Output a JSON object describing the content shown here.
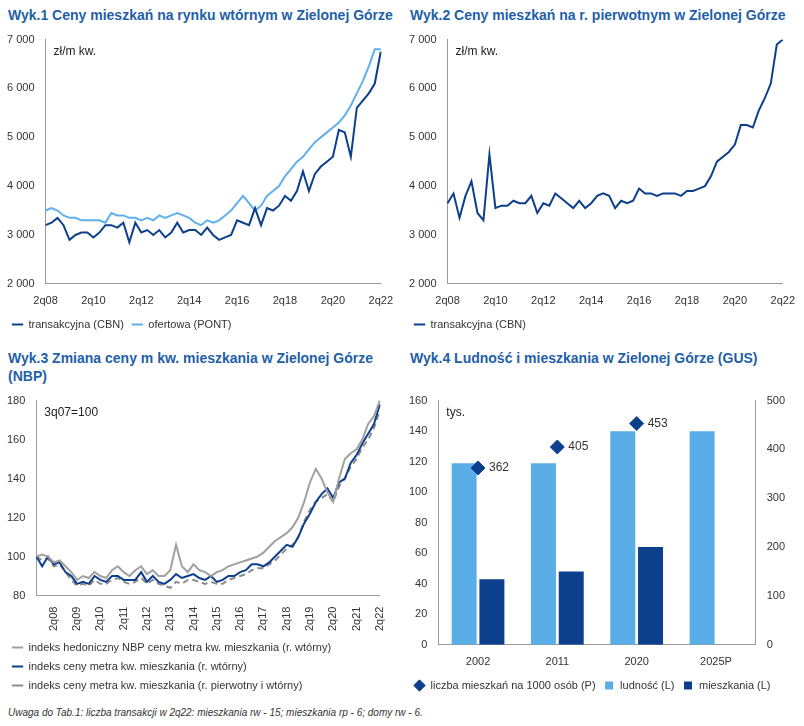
{
  "chart_data": [
    {
      "type": "line",
      "title": "Wyk.1 Ceny mieszkań na rynku wtórnym w Zielonej Górze",
      "annotation": "zł/m kw.",
      "categories": [
        "2q08",
        null,
        null,
        null,
        null,
        null,
        null,
        null,
        "2q10",
        null,
        null,
        null,
        null,
        null,
        null,
        null,
        "2q12",
        null,
        null,
        null,
        null,
        null,
        null,
        null,
        "2q14",
        null,
        null,
        null,
        null,
        null,
        null,
        null,
        "2q16",
        null,
        null,
        null,
        null,
        null,
        null,
        null,
        "2q18",
        null,
        null,
        null,
        null,
        null,
        null,
        null,
        "2q20",
        null,
        null,
        null,
        null,
        null,
        null,
        null,
        "2q22"
      ],
      "series": [
        {
          "name": "transakcyjna (CBN)",
          "color": "#0c3f8c",
          "line_style": "solid",
          "values": [
            3200,
            3250,
            3350,
            3200,
            2900,
            3000,
            3050,
            3050,
            2950,
            3050,
            3200,
            3200,
            3150,
            3250,
            2850,
            3250,
            3050,
            3100,
            3000,
            3100,
            2950,
            3050,
            3250,
            3050,
            3100,
            3100,
            3000,
            3150,
            3000,
            2900,
            2950,
            3000,
            3300,
            3250,
            3200,
            3550,
            3200,
            3550,
            3500,
            3600,
            3800,
            3700,
            3900,
            4300,
            3900,
            4250,
            4400,
            4500,
            4600,
            5150,
            5100,
            4600,
            5600,
            5750,
            5900,
            6100,
            6750
          ]
        },
        {
          "name": "ofertowa (PONT)",
          "color": "#5fb0ea",
          "line_style": "solid",
          "values": [
            3500,
            3550,
            3500,
            3400,
            3350,
            3350,
            3300,
            3300,
            3300,
            3300,
            3250,
            3450,
            3400,
            3400,
            3350,
            3350,
            3300,
            3350,
            3300,
            3400,
            3350,
            3400,
            3450,
            3400,
            3350,
            3250,
            3200,
            3300,
            3250,
            3300,
            3400,
            3500,
            3650,
            3800,
            3650,
            3500,
            3600,
            3800,
            3900,
            4000,
            4200,
            4350,
            4500,
            4600,
            4750,
            4900,
            5000,
            5100,
            5200,
            5300,
            5450,
            5650,
            5900,
            6150,
            6450,
            6800,
            6800
          ]
        }
      ],
      "ylim": [
        2000,
        7000
      ],
      "yticks": [
        {
          "value": 2000,
          "label": "2 000"
        },
        {
          "value": 3000,
          "label": "3 000"
        },
        {
          "value": 4000,
          "label": "4 000"
        },
        {
          "value": 5000,
          "label": "5 000"
        },
        {
          "value": 6000,
          "label": "6 000"
        },
        {
          "value": 7000,
          "label": "7 000"
        }
      ],
      "grid": false,
      "legend": "bottom"
    },
    {
      "type": "line",
      "title": "Wyk.2 Ceny mieszkań na r. pierwotnym w Zielonej Górze",
      "annotation": "zł/m kw.",
      "categories": [
        "2q08",
        null,
        null,
        null,
        null,
        null,
        null,
        null,
        "2q10",
        null,
        null,
        null,
        null,
        null,
        null,
        null,
        "2q12",
        null,
        null,
        null,
        null,
        null,
        null,
        null,
        "2q14",
        null,
        null,
        null,
        null,
        null,
        null,
        null,
        "2q16",
        null,
        null,
        null,
        null,
        null,
        null,
        null,
        "2q18",
        null,
        null,
        null,
        null,
        null,
        null,
        null,
        "2q20",
        null,
        null,
        null,
        null,
        null,
        null,
        null,
        "2q22"
      ],
      "series": [
        {
          "name": "transakcyjna (CBN)",
          "color": "#0c3f8c",
          "line_style": "solid",
          "values": [
            3650,
            3850,
            3350,
            3800,
            4100,
            3450,
            3300,
            4650,
            3550,
            3600,
            3600,
            3700,
            3650,
            3650,
            3800,
            3450,
            3650,
            3600,
            3850,
            3750,
            3650,
            3550,
            3700,
            3550,
            3650,
            3800,
            3850,
            3800,
            3550,
            3700,
            3650,
            3700,
            3950,
            3850,
            3850,
            3800,
            3850,
            3850,
            3850,
            3800,
            3900,
            3900,
            3950,
            4000,
            4200,
            4500,
            4600,
            4700,
            4850,
            5250,
            5250,
            5200,
            5550,
            5800,
            6100,
            6900,
            7000
          ]
        }
      ],
      "ylim": [
        2000,
        7000
      ],
      "yticks": [
        {
          "value": 2000,
          "label": "2 000"
        },
        {
          "value": 3000,
          "label": "3 000"
        },
        {
          "value": 4000,
          "label": "4 000"
        },
        {
          "value": 5000,
          "label": "5 000"
        },
        {
          "value": 6000,
          "label": "6 000"
        },
        {
          "value": 7000,
          "label": "7 000"
        }
      ],
      "grid": false,
      "legend": "bottom"
    },
    {
      "type": "line",
      "title": "Wyk.3 Zmiana ceny m kw. mieszkania w Zielonej Górze (NBP)",
      "annotation": "3q07=100",
      "categories": [
        null,
        null,
        null,
        "2q08",
        null,
        null,
        null,
        "2q09",
        null,
        null,
        null,
        "2q10",
        null,
        null,
        null,
        "2q11",
        null,
        null,
        null,
        "2q12",
        null,
        null,
        null,
        "2q13",
        null,
        null,
        null,
        "2q14",
        null,
        null,
        null,
        "2q15",
        null,
        null,
        null,
        "2q16",
        null,
        null,
        null,
        "2q17",
        null,
        null,
        null,
        "2q18",
        null,
        null,
        null,
        "2q19",
        null,
        null,
        null,
        "2q20",
        null,
        null,
        null,
        "2q21",
        null,
        null,
        null,
        "2q22"
      ],
      "series": [
        {
          "name": "indeks hedoniczny NBP ceny metra kw. mieszkania (r. wtórny)",
          "color": "#a0a0a0",
          "line_style": "solid",
          "values": [
            100,
            101,
            100,
            97,
            98,
            95,
            92,
            88,
            90,
            89,
            92,
            90,
            89,
            93,
            95,
            92,
            90,
            93,
            95,
            91,
            93,
            90,
            90,
            93,
            106,
            95,
            92,
            96,
            93,
            92,
            90,
            92,
            93,
            95,
            96,
            97,
            98,
            99,
            100,
            102,
            105,
            108,
            110,
            112,
            115,
            120,
            128,
            138,
            145,
            140,
            133,
            128,
            140,
            150,
            153,
            155,
            160,
            168,
            172,
            180
          ]
        },
        {
          "name": "indeks ceny metra kw. mieszkania (r. wtórny)",
          "color": "#0c3f8c",
          "line_style": "solid",
          "values": [
            100,
            95,
            100,
            96,
            97,
            92,
            90,
            86,
            87,
            86,
            90,
            88,
            87,
            90,
            90,
            88,
            88,
            88,
            92,
            87,
            90,
            87,
            86,
            88,
            91,
            89,
            90,
            91,
            89,
            88,
            90,
            87,
            88,
            90,
            90,
            92,
            93,
            96,
            96,
            95,
            97,
            100,
            103,
            106,
            105,
            110,
            117,
            122,
            128,
            132,
            135,
            130,
            138,
            140,
            148,
            152,
            158,
            163,
            168,
            178
          ]
        },
        {
          "name": "indeks ceny metra kw. mieszkania (r. pierwotny i wtórny)",
          "color": "#8c8c8c",
          "line_style": "dashed",
          "values": [
            100,
            98,
            99,
            95,
            96,
            92,
            88,
            85,
            86,
            85,
            88,
            86,
            86,
            88,
            89,
            87,
            86,
            87,
            89,
            86,
            88,
            86,
            85,
            84,
            87,
            86,
            88,
            88,
            87,
            86,
            87,
            86,
            86,
            88,
            89,
            90,
            91,
            93,
            94,
            94,
            96,
            98,
            101,
            104,
            106,
            110,
            118,
            124,
            128,
            130,
            132,
            128,
            136,
            140,
            146,
            150,
            156,
            160,
            166,
            175
          ]
        }
      ],
      "ylim": [
        80,
        180
      ],
      "yticks": [
        80,
        100,
        120,
        140,
        160,
        180
      ],
      "grid": false,
      "legend": "bottom"
    },
    {
      "type": "bar",
      "title": "Wyk.4 Ludność i mieszkania w Zielonej Górze (GUS)",
      "annotation": "tys.",
      "categories": [
        "2002",
        "2011",
        "2020",
        "2025P"
      ],
      "series": [
        {
          "name": "ludność (L)",
          "type": "bar",
          "color": "#5aaee8",
          "values": [
            119,
            119,
            140,
            140
          ]
        },
        {
          "name": "mieszkania (L)",
          "type": "bar",
          "color": "#0c3f8c",
          "values": [
            43,
            48,
            64,
            null
          ]
        },
        {
          "name": "liczba mieszkań na 1000 osób (P)",
          "type": "line",
          "marker": "diamond",
          "color": "#0c3f8c",
          "axis": "y2",
          "data_labels": true,
          "values": [
            362,
            405,
            453,
            null
          ]
        }
      ],
      "ylim": [
        0,
        160
      ],
      "yticks": [
        0,
        20,
        40,
        60,
        80,
        100,
        120,
        140,
        160
      ],
      "y2lim": [
        0,
        500
      ],
      "y2ticks": [
        0,
        100,
        200,
        300,
        400,
        500
      ],
      "grid": false,
      "legend": "bottom"
    }
  ],
  "note": "Uwaga do Tab.1: liczba transakcji w 2q22: mieszkania rw - 15; mieszkania rp - 6; domy rw - 6."
}
